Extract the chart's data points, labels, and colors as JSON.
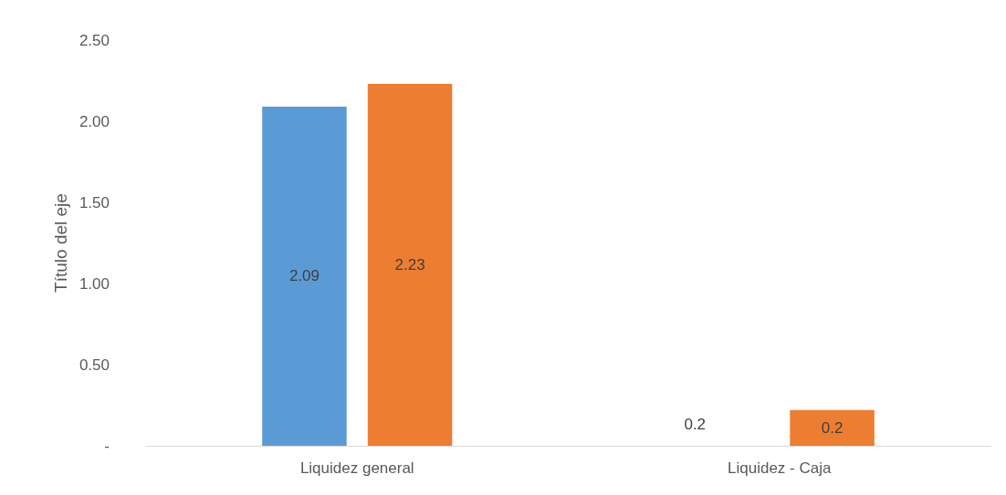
{
  "chart_data": {
    "type": "bar",
    "ylabel": "Título del eje",
    "categories": [
      "Liquidez general",
      "Liquidez - Caja"
    ],
    "series": [
      {
        "color": "#5b9bd5",
        "values": [
          2.09,
          null
        ],
        "value_labels": [
          "2.09",
          null
        ]
      },
      {
        "color": "#ed7d31",
        "values": [
          2.23,
          0.22
        ],
        "value_labels": [
          "2.23",
          "0.2"
        ]
      }
    ],
    "ylim": [
      0,
      2.5
    ],
    "yticks": [
      {
        "value": 0,
        "label": "-"
      },
      {
        "value": 0.5,
        "label": "0.50"
      },
      {
        "value": 1,
        "label": "1.00"
      },
      {
        "value": 1.5,
        "label": "1.50"
      },
      {
        "value": 2,
        "label": "2.00"
      },
      {
        "value": 2.5,
        "label": "2.50"
      }
    ],
    "annotations": [
      "0.2"
    ],
    "grid": false
  }
}
